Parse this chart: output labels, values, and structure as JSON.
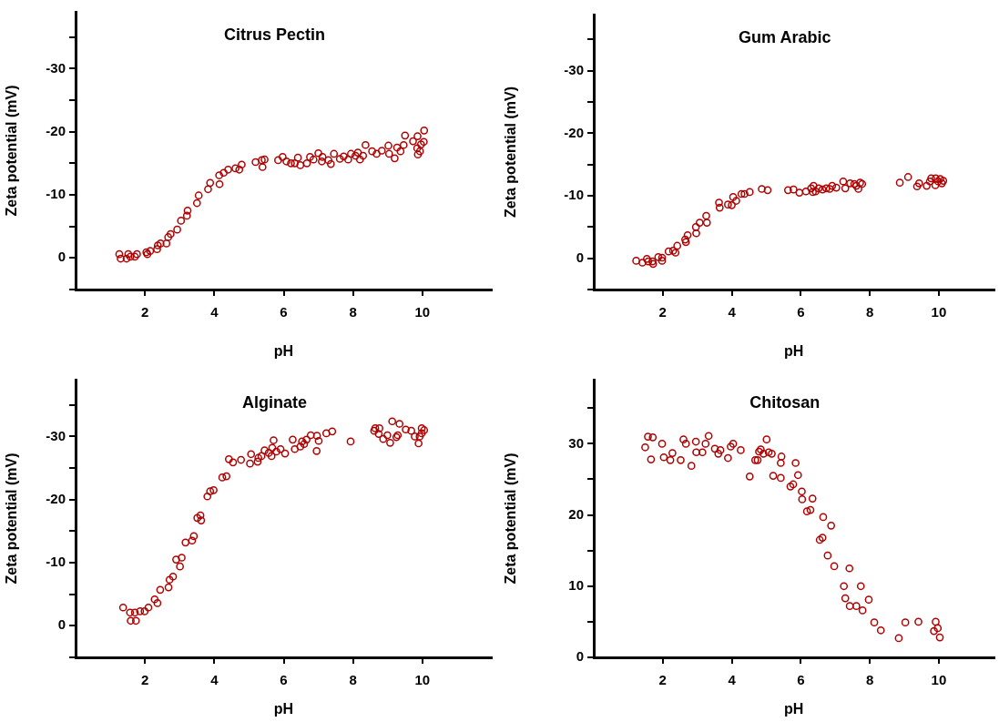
{
  "chart_data": [
    {
      "type": "scatter",
      "title": "Citrus Pectin",
      "xlabel": "pH",
      "ylabel": "Zeta potential (mV)",
      "color": "#b00000",
      "marker": "circle",
      "xlim": [
        0,
        12
      ],
      "xticks": [
        2,
        4,
        6,
        8,
        10
      ],
      "ylim": [
        5,
        -39
      ],
      "yticks": [
        {
          "value": 5,
          "label": null
        },
        0,
        {
          "value": -5,
          "label": null
        },
        -10,
        {
          "value": -15,
          "label": null
        },
        -20,
        {
          "value": -25,
          "label": null
        },
        -30,
        {
          "value": -35,
          "label": null
        }
      ],
      "x": [
        1.26,
        1.3,
        1.47,
        1.52,
        1.58,
        1.71,
        1.77,
        2.04,
        2.07,
        2.15,
        2.35,
        2.37,
        2.45,
        2.62,
        2.67,
        2.74,
        2.93,
        3.04,
        3.21,
        3.23,
        3.5,
        3.55,
        3.82,
        3.88,
        4.14,
        4.15,
        4.27,
        4.4,
        4.61,
        4.72,
        4.79,
        5.19,
        5.37,
        5.39,
        5.45,
        5.84,
        5.97,
        6.08,
        6.21,
        6.32,
        6.41,
        6.48,
        6.67,
        6.76,
        6.86,
        7.0,
        7.1,
        7.12,
        7.29,
        7.36,
        7.45,
        7.62,
        7.73,
        7.86,
        7.94,
        8.07,
        8.14,
        8.2,
        8.29,
        8.36,
        8.55,
        8.68,
        8.83,
        9.02,
        9.04,
        9.2,
        9.27,
        9.37,
        9.46,
        9.5,
        9.73,
        9.86,
        9.85,
        9.87,
        9.93,
        9.96,
        10.04,
        10.05
      ],
      "values": [
        -0.6,
        0.1,
        0.1,
        -0.6,
        -0.2,
        -0.2,
        -0.6,
        -0.9,
        -0.6,
        -1.1,
        -1.4,
        -2.0,
        -2.3,
        -2.3,
        -3.3,
        -3.8,
        -4.5,
        -5.9,
        -6.7,
        -7.5,
        -8.7,
        -9.9,
        -10.9,
        -11.9,
        -13.1,
        -11.7,
        -13.5,
        -14.0,
        -14.2,
        -14.0,
        -14.8,
        -15.2,
        -15.5,
        -14.4,
        -15.6,
        -15.5,
        -16.0,
        -15.3,
        -15.0,
        -15.0,
        -15.9,
        -14.7,
        -15.0,
        -16.0,
        -15.6,
        -16.6,
        -15.3,
        -16.0,
        -15.5,
        -14.9,
        -16.5,
        -15.7,
        -16.1,
        -15.6,
        -16.5,
        -16.2,
        -16.7,
        -15.6,
        -16.2,
        -17.9,
        -16.9,
        -16.5,
        -17.0,
        -17.8,
        -16.5,
        -15.8,
        -17.5,
        -16.9,
        -17.9,
        -19.4,
        -18.5,
        -19.3,
        -17.4,
        -16.4,
        -16.9,
        -18.0,
        -18.4,
        -20.2
      ]
    },
    {
      "type": "scatter",
      "title": "Gum Arabic",
      "xlabel": "pH",
      "ylabel": "Zeta potential (mV)",
      "color": "#b00000",
      "marker": "circle",
      "xlim": [
        0,
        11.6
      ],
      "xticks": [
        2,
        4,
        6,
        8,
        10
      ],
      "ylim": [
        5,
        -39
      ],
      "yticks": [
        {
          "value": 5,
          "label": null
        },
        0,
        {
          "value": -5,
          "label": null
        },
        -10,
        {
          "value": -15,
          "label": null
        },
        -20,
        {
          "value": -25,
          "label": null
        },
        -30,
        {
          "value": -35,
          "label": null
        }
      ],
      "x": [
        1.23,
        1.41,
        1.54,
        1.58,
        1.7,
        1.72,
        1.87,
        1.98,
        1.98,
        2.17,
        2.3,
        2.37,
        2.42,
        2.65,
        2.67,
        2.72,
        2.96,
        2.97,
        3.07,
        3.26,
        3.28,
        3.63,
        3.65,
        3.89,
        4.0,
        4.04,
        4.13,
        4.28,
        4.37,
        4.52,
        4.87,
        5.04,
        5.63,
        5.79,
        5.96,
        6.15,
        6.3,
        6.35,
        6.37,
        6.43,
        6.52,
        6.63,
        6.74,
        6.84,
        6.91,
        7.03,
        7.23,
        7.29,
        7.43,
        7.55,
        7.61,
        7.67,
        7.72,
        7.78,
        8.87,
        9.11,
        9.37,
        9.43,
        9.65,
        9.74,
        9.78,
        9.9,
        9.91,
        9.98,
        10.04,
        10.09,
        10.13
      ],
      "values": [
        0.4,
        0.7,
        0.1,
        0.5,
        0.5,
        0.9,
        -0.2,
        -0.1,
        0.4,
        -1.1,
        -1.2,
        -0.9,
        -2.0,
        -3.0,
        -2.6,
        -3.7,
        -5.0,
        -4.0,
        -5.7,
        -6.8,
        -5.7,
        -8.9,
        -8.1,
        -8.6,
        -8.5,
        -9.8,
        -9.2,
        -10.3,
        -10.3,
        -10.6,
        -11.1,
        -10.9,
        -10.9,
        -11.0,
        -10.5,
        -10.7,
        -11.2,
        -10.6,
        -11.6,
        -10.7,
        -11.2,
        -11.0,
        -11.2,
        -11.1,
        -11.6,
        -11.3,
        -12.3,
        -11.2,
        -12.0,
        -11.9,
        -11.6,
        -11.1,
        -12.1,
        -11.9,
        -12.1,
        -13.0,
        -11.5,
        -12.0,
        -11.6,
        -12.3,
        -12.8,
        -11.7,
        -12.8,
        -12.3,
        -12.7,
        -12.0,
        -12.4
      ]
    },
    {
      "type": "scatter",
      "title": "Alginate",
      "xlabel": "pH",
      "ylabel": "Zeta potential (mV)",
      "color": "#b00000",
      "marker": "circle",
      "xlim": [
        0,
        12
      ],
      "xticks": [
        2,
        4,
        6,
        8,
        10
      ],
      "ylim": [
        5,
        -39
      ],
      "yticks": [
        {
          "value": 5,
          "label": null
        },
        0,
        {
          "value": -5,
          "label": null
        },
        -10,
        {
          "value": -15,
          "label": null
        },
        -20,
        {
          "value": -25,
          "label": null
        },
        -30,
        {
          "value": -35,
          "label": null
        }
      ],
      "x": [
        1.37,
        1.57,
        1.59,
        1.71,
        1.74,
        1.86,
        1.99,
        2.1,
        2.28,
        2.36,
        2.44,
        2.68,
        2.71,
        2.81,
        2.9,
        3.01,
        3.06,
        3.17,
        3.36,
        3.41,
        3.51,
        3.6,
        3.62,
        3.8,
        3.88,
        3.98,
        4.23,
        4.35,
        4.42,
        4.54,
        4.77,
        5.03,
        5.06,
        5.25,
        5.27,
        5.36,
        5.45,
        5.57,
        5.65,
        5.67,
        5.71,
        5.79,
        5.91,
        6.04,
        6.26,
        6.32,
        6.48,
        6.53,
        6.59,
        6.66,
        6.78,
        6.95,
        6.96,
        7.01,
        7.23,
        7.4,
        7.93,
        8.61,
        8.64,
        8.74,
        8.76,
        8.87,
        8.99,
        9.07,
        9.13,
        9.25,
        9.29,
        9.34,
        9.52,
        9.68,
        9.78,
        9.89,
        9.92,
        9.98,
        9.98,
        10.05
      ],
      "values": [
        -2.9,
        -2.1,
        -0.8,
        -2.1,
        -0.8,
        -2.3,
        -2.3,
        -2.9,
        -4.2,
        -3.6,
        -5.7,
        -6.1,
        -7.3,
        -7.8,
        -10.5,
        -9.4,
        -10.8,
        -13.2,
        -13.5,
        -14.2,
        -17.1,
        -17.5,
        -16.7,
        -20.5,
        -21.3,
        -21.5,
        -23.5,
        -23.7,
        -26.4,
        -25.9,
        -26.3,
        -25.7,
        -27.2,
        -26.0,
        -26.6,
        -26.9,
        -27.8,
        -27.4,
        -26.9,
        -28.2,
        -29.4,
        -27.6,
        -28.0,
        -27.3,
        -29.5,
        -28.0,
        -28.4,
        -29.2,
        -28.8,
        -29.5,
        -30.2,
        -27.7,
        -30.1,
        -29.3,
        -30.5,
        -30.8,
        -29.2,
        -30.9,
        -31.3,
        -30.4,
        -31.3,
        -29.6,
        -30.2,
        -29.0,
        -32.4,
        -29.9,
        -30.2,
        -32.0,
        -31.1,
        -30.9,
        -30.0,
        -28.9,
        -30.0,
        -30.5,
        -31.3,
        -31.0
      ]
    },
    {
      "type": "scatter",
      "title": "Chitosan",
      "xlabel": "pH",
      "ylabel": "Zeta potential (mV)",
      "color": "#b00000",
      "marker": "circle",
      "xlim": [
        0,
        11.6
      ],
      "xticks": [
        2,
        4,
        6,
        8,
        10
      ],
      "ylim": [
        0,
        39
      ],
      "yticks": [
        0,
        {
          "value": 5,
          "label": null
        },
        10,
        {
          "value": 15,
          "label": null
        },
        20,
        {
          "value": 25,
          "label": null
        },
        30,
        {
          "value": 35,
          "label": null
        }
      ],
      "x": [
        1.49,
        1.57,
        1.66,
        1.71,
        1.98,
        2.03,
        2.22,
        2.28,
        2.52,
        2.6,
        2.67,
        2.83,
        2.96,
        2.97,
        3.15,
        3.24,
        3.33,
        3.51,
        3.61,
        3.67,
        3.89,
        3.97,
        4.04,
        4.26,
        4.52,
        4.68,
        4.75,
        4.79,
        4.84,
        4.92,
        5.01,
        5.07,
        5.16,
        5.2,
        5.42,
        5.42,
        5.44,
        5.7,
        5.78,
        5.85,
        5.92,
        6.03,
        6.04,
        6.18,
        6.28,
        6.34,
        6.55,
        6.63,
        6.65,
        6.78,
        6.88,
        6.97,
        7.25,
        7.29,
        7.41,
        7.42,
        7.61,
        7.74,
        7.79,
        7.97,
        8.13,
        8.32,
        8.84,
        9.03,
        9.41,
        9.86,
        9.91,
        9.97,
        10.03
      ],
      "values": [
        29.5,
        31.0,
        27.8,
        30.9,
        30.0,
        28.1,
        27.7,
        28.7,
        27.7,
        30.6,
        30.0,
        26.9,
        30.3,
        28.8,
        28.8,
        30.0,
        31.1,
        29.3,
        28.6,
        29.1,
        28.0,
        29.6,
        30.0,
        29.1,
        25.4,
        27.7,
        27.7,
        28.9,
        29.2,
        28.6,
        30.6,
        28.8,
        28.6,
        25.5,
        25.2,
        27.3,
        28.2,
        24.0,
        24.3,
        27.3,
        25.6,
        23.3,
        22.2,
        20.5,
        20.7,
        22.3,
        16.5,
        16.8,
        19.7,
        14.3,
        18.5,
        12.8,
        10.0,
        8.3,
        12.5,
        7.2,
        7.2,
        10.0,
        6.6,
        8.1,
        4.9,
        3.8,
        2.7,
        4.9,
        5.0,
        3.7,
        5.0,
        4.1,
        2.8
      ]
    }
  ]
}
